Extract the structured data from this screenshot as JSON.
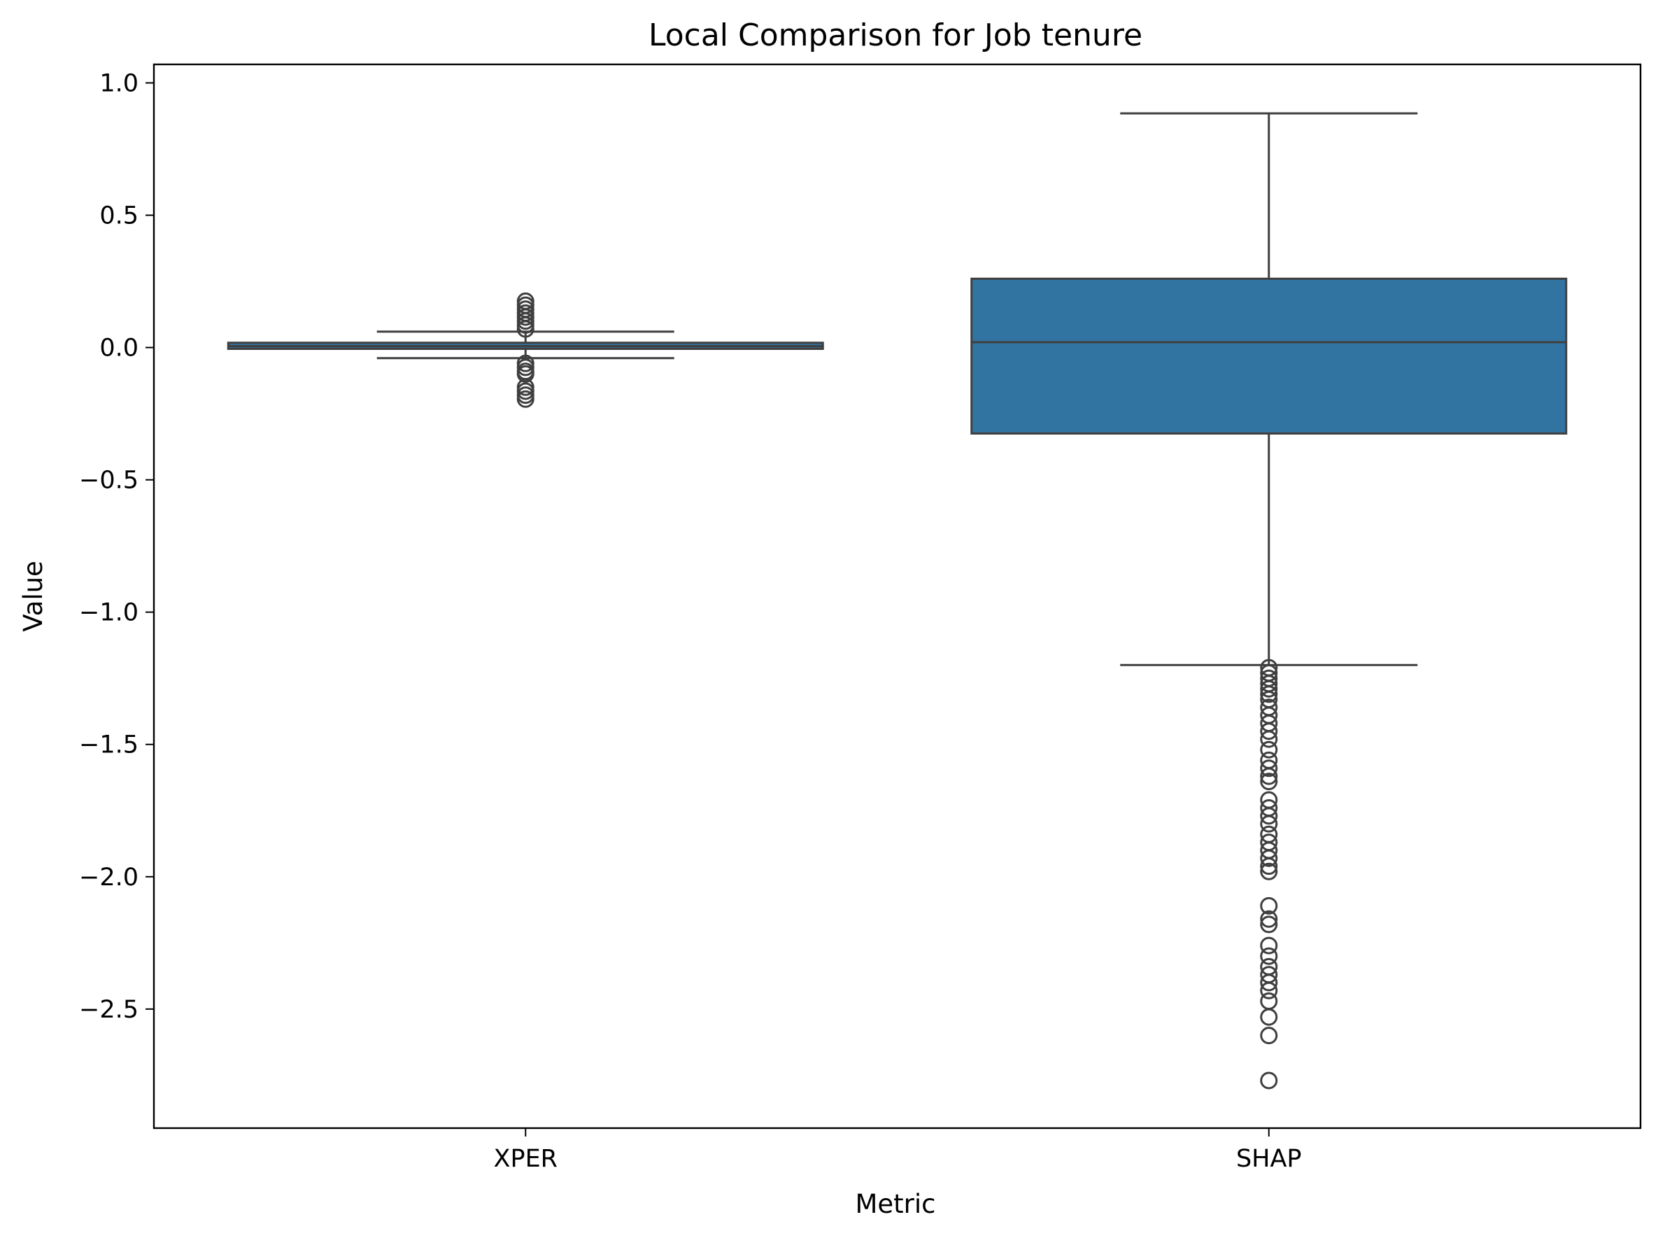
{
  "chart_data": {
    "type": "box",
    "title": "Local Comparison for Job tenure",
    "xlabel": "Metric",
    "ylabel": "Value",
    "ylim": [
      -2.95,
      1.07
    ],
    "yticks": [
      1.0,
      0.5,
      0.0,
      -0.5,
      -1.0,
      -1.5,
      -2.0,
      -2.5
    ],
    "ytick_labels": [
      "1.0",
      "0.5",
      "0.0",
      "−0.5",
      "−1.0",
      "−1.5",
      "−2.0",
      "−2.5"
    ],
    "categories": [
      "XPER",
      "SHAP"
    ],
    "box_color": "#3274a1",
    "line_color": "#3f3f3f",
    "grid": false,
    "legend": "none",
    "boxes": [
      {
        "category": "XPER",
        "whisker_low": -0.04,
        "q1": -0.005,
        "median": 0.005,
        "q3": 0.018,
        "whisker_high": 0.06,
        "outliers": [
          0.07,
          0.085,
          0.1,
          0.115,
          0.13,
          0.145,
          0.16,
          0.175,
          -0.06,
          -0.075,
          -0.09,
          -0.1,
          -0.15,
          -0.165,
          -0.18,
          -0.195
        ]
      },
      {
        "category": "SHAP",
        "whisker_low": -1.2,
        "q1": -0.325,
        "median": 0.02,
        "q3": 0.26,
        "whisker_high": 0.885,
        "outliers": [
          -1.21,
          -1.23,
          -1.25,
          -1.27,
          -1.29,
          -1.31,
          -1.33,
          -1.36,
          -1.39,
          -1.42,
          -1.45,
          -1.48,
          -1.52,
          -1.56,
          -1.59,
          -1.62,
          -1.64,
          -1.71,
          -1.74,
          -1.77,
          -1.8,
          -1.84,
          -1.87,
          -1.9,
          -1.93,
          -1.96,
          -1.98,
          -2.11,
          -2.16,
          -2.18,
          -2.26,
          -2.3,
          -2.34,
          -2.37,
          -2.4,
          -2.43,
          -2.47,
          -2.53,
          -2.6,
          -2.77
        ]
      }
    ]
  }
}
